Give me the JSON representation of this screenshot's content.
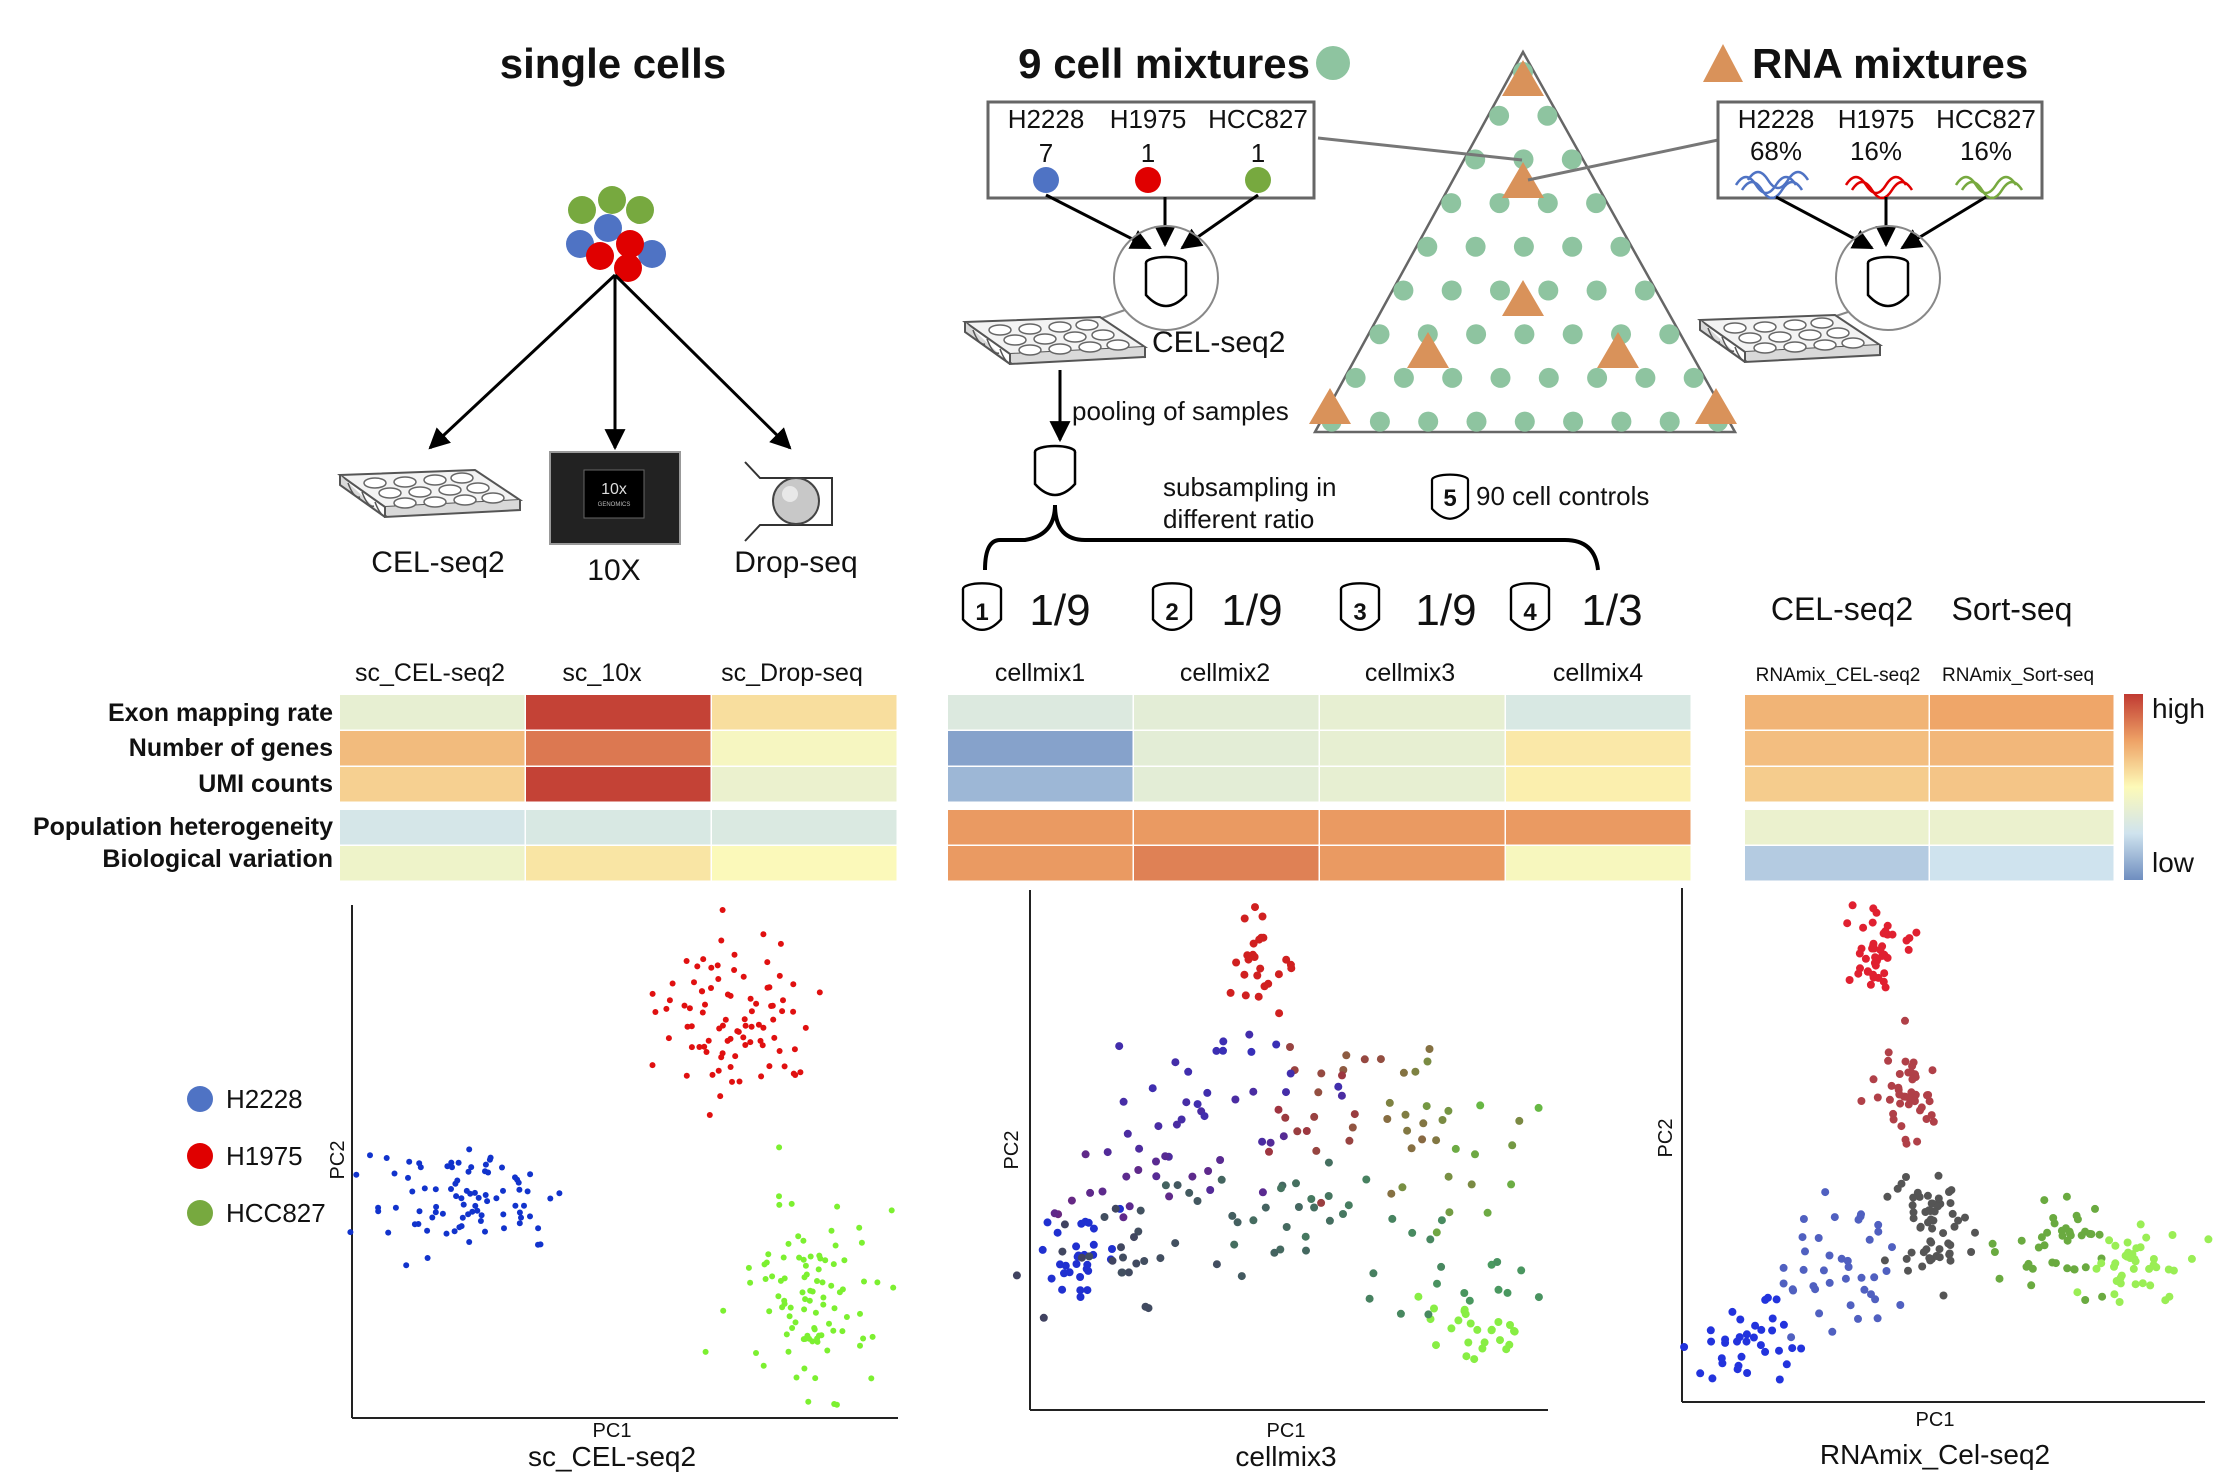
{
  "sections": {
    "single_cells": "single cells",
    "cell_mixtures": "9 cell mixtures",
    "rna_mixtures": "RNA mixtures"
  },
  "cell_lines": [
    "H2228",
    "H1975",
    "HCC827"
  ],
  "colors": {
    "H2228": "#4f73c4",
    "H1975": "#e00000",
    "HCC827": "#77a93f",
    "mixture_dot": "#8ec4a0",
    "rna_triangle": "#d9925a"
  },
  "cell_mix_counts": [
    "7",
    "1",
    "1"
  ],
  "rna_mix_percents": [
    "68%",
    "16%",
    "16%"
  ],
  "protocols": {
    "celseq2": "CEL-seq2",
    "tenx": "10X",
    "dropseq": "Drop-seq",
    "tenx_screen": "10x",
    "tenx_brand": "GENOMICS",
    "sortseq": "Sort-seq"
  },
  "workflow": {
    "pooling": "pooling of samples",
    "subsampling_line1": "subsampling in",
    "subsampling_line2": "different ratio",
    "controls_num": "5",
    "controls": "90 cell controls"
  },
  "subsamples": [
    {
      "num": "1",
      "ratio": "1/9",
      "name": "cellmix1"
    },
    {
      "num": "2",
      "ratio": "1/9",
      "name": "cellmix2"
    },
    {
      "num": "3",
      "ratio": "1/9",
      "name": "cellmix3"
    },
    {
      "num": "4",
      "ratio": "1/3",
      "name": "cellmix4"
    }
  ],
  "heatmap": {
    "row_labels": [
      "Exon mapping rate",
      "Number of genes",
      "UMI counts",
      "Population heterogeneity",
      "Biological variation"
    ],
    "sc_columns": [
      "sc_CEL-seq2",
      "sc_10x",
      "sc_Drop-seq"
    ],
    "sc_values": [
      [
        0.38,
        0.98,
        0.58
      ],
      [
        0.68,
        0.85,
        0.46
      ],
      [
        0.62,
        0.98,
        0.4
      ],
      [
        0.28,
        0.3,
        0.31
      ],
      [
        0.42,
        0.56,
        0.49
      ]
    ],
    "cellmix_values": [
      [
        0.32,
        0.36,
        0.38,
        0.3
      ],
      [
        0.06,
        0.36,
        0.38,
        0.55
      ],
      [
        0.12,
        0.36,
        0.38,
        0.53
      ],
      [
        0.77,
        0.77,
        0.77,
        0.77
      ],
      [
        0.77,
        0.83,
        0.77,
        0.47
      ]
    ],
    "rna_header_left": "CEL-seq2",
    "rna_header_right": "Sort-seq",
    "rna_columns": [
      "RNAmix_CEL-seq2",
      "RNAmix_Sort-seq"
    ],
    "rna_values": [
      [
        0.7,
        0.74
      ],
      [
        0.67,
        0.69
      ],
      [
        0.63,
        0.65
      ],
      [
        0.4,
        0.4
      ],
      [
        0.18,
        0.25
      ]
    ],
    "legend_high": "high",
    "legend_low": "low"
  },
  "scatter_panels": [
    {
      "title": "sc_CEL-seq2",
      "xlabel": "PC1",
      "ylabel": "PC2"
    },
    {
      "title": "cellmix3",
      "xlabel": "PC1",
      "ylabel": "PC2"
    },
    {
      "title": "RNAmix_Cel-seq2",
      "xlabel": "PC1",
      "ylabel": "PC2"
    }
  ],
  "legend": [
    "H2228",
    "H1975",
    "HCC827"
  ]
}
